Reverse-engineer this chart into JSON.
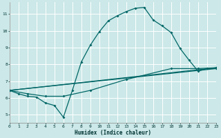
{
  "xlabel": "Humidex (Indice chaleur)",
  "bg_color": "#cce8e8",
  "line_color": "#006666",
  "grid_color": "#ffffff",
  "grid_minor_color": "#ddeaea",
  "xmin": 0,
  "xmax": 23,
  "ymin": 4.5,
  "ymax": 11.7,
  "yticks": [
    5,
    6,
    7,
    8,
    9,
    10,
    11
  ],
  "xticks": [
    0,
    1,
    2,
    3,
    4,
    5,
    6,
    7,
    8,
    9,
    10,
    11,
    12,
    13,
    14,
    15,
    16,
    17,
    18,
    19,
    20,
    21,
    22,
    23
  ],
  "line1_x": [
    0,
    1,
    2,
    3,
    4,
    5,
    6,
    7,
    8,
    9,
    10,
    11,
    12,
    13,
    14,
    15,
    16,
    17,
    18,
    19,
    20,
    21,
    22,
    23
  ],
  "line1_y": [
    6.45,
    6.25,
    6.1,
    6.05,
    5.7,
    5.55,
    4.85,
    6.45,
    8.15,
    9.15,
    9.95,
    10.6,
    10.9,
    11.15,
    11.35,
    11.4,
    10.65,
    10.3,
    9.9,
    8.95,
    8.25,
    7.6,
    7.75,
    7.75
  ],
  "line2_x": [
    0,
    23
  ],
  "line2_y": [
    6.45,
    7.8
  ],
  "line3_x": [
    0,
    23
  ],
  "line3_y": [
    6.45,
    7.75
  ],
  "line4_x": [
    0,
    2,
    4,
    6,
    9,
    13,
    18,
    21,
    23
  ],
  "line4_y": [
    6.45,
    6.25,
    6.1,
    6.1,
    6.45,
    7.1,
    7.75,
    7.75,
    7.8
  ]
}
